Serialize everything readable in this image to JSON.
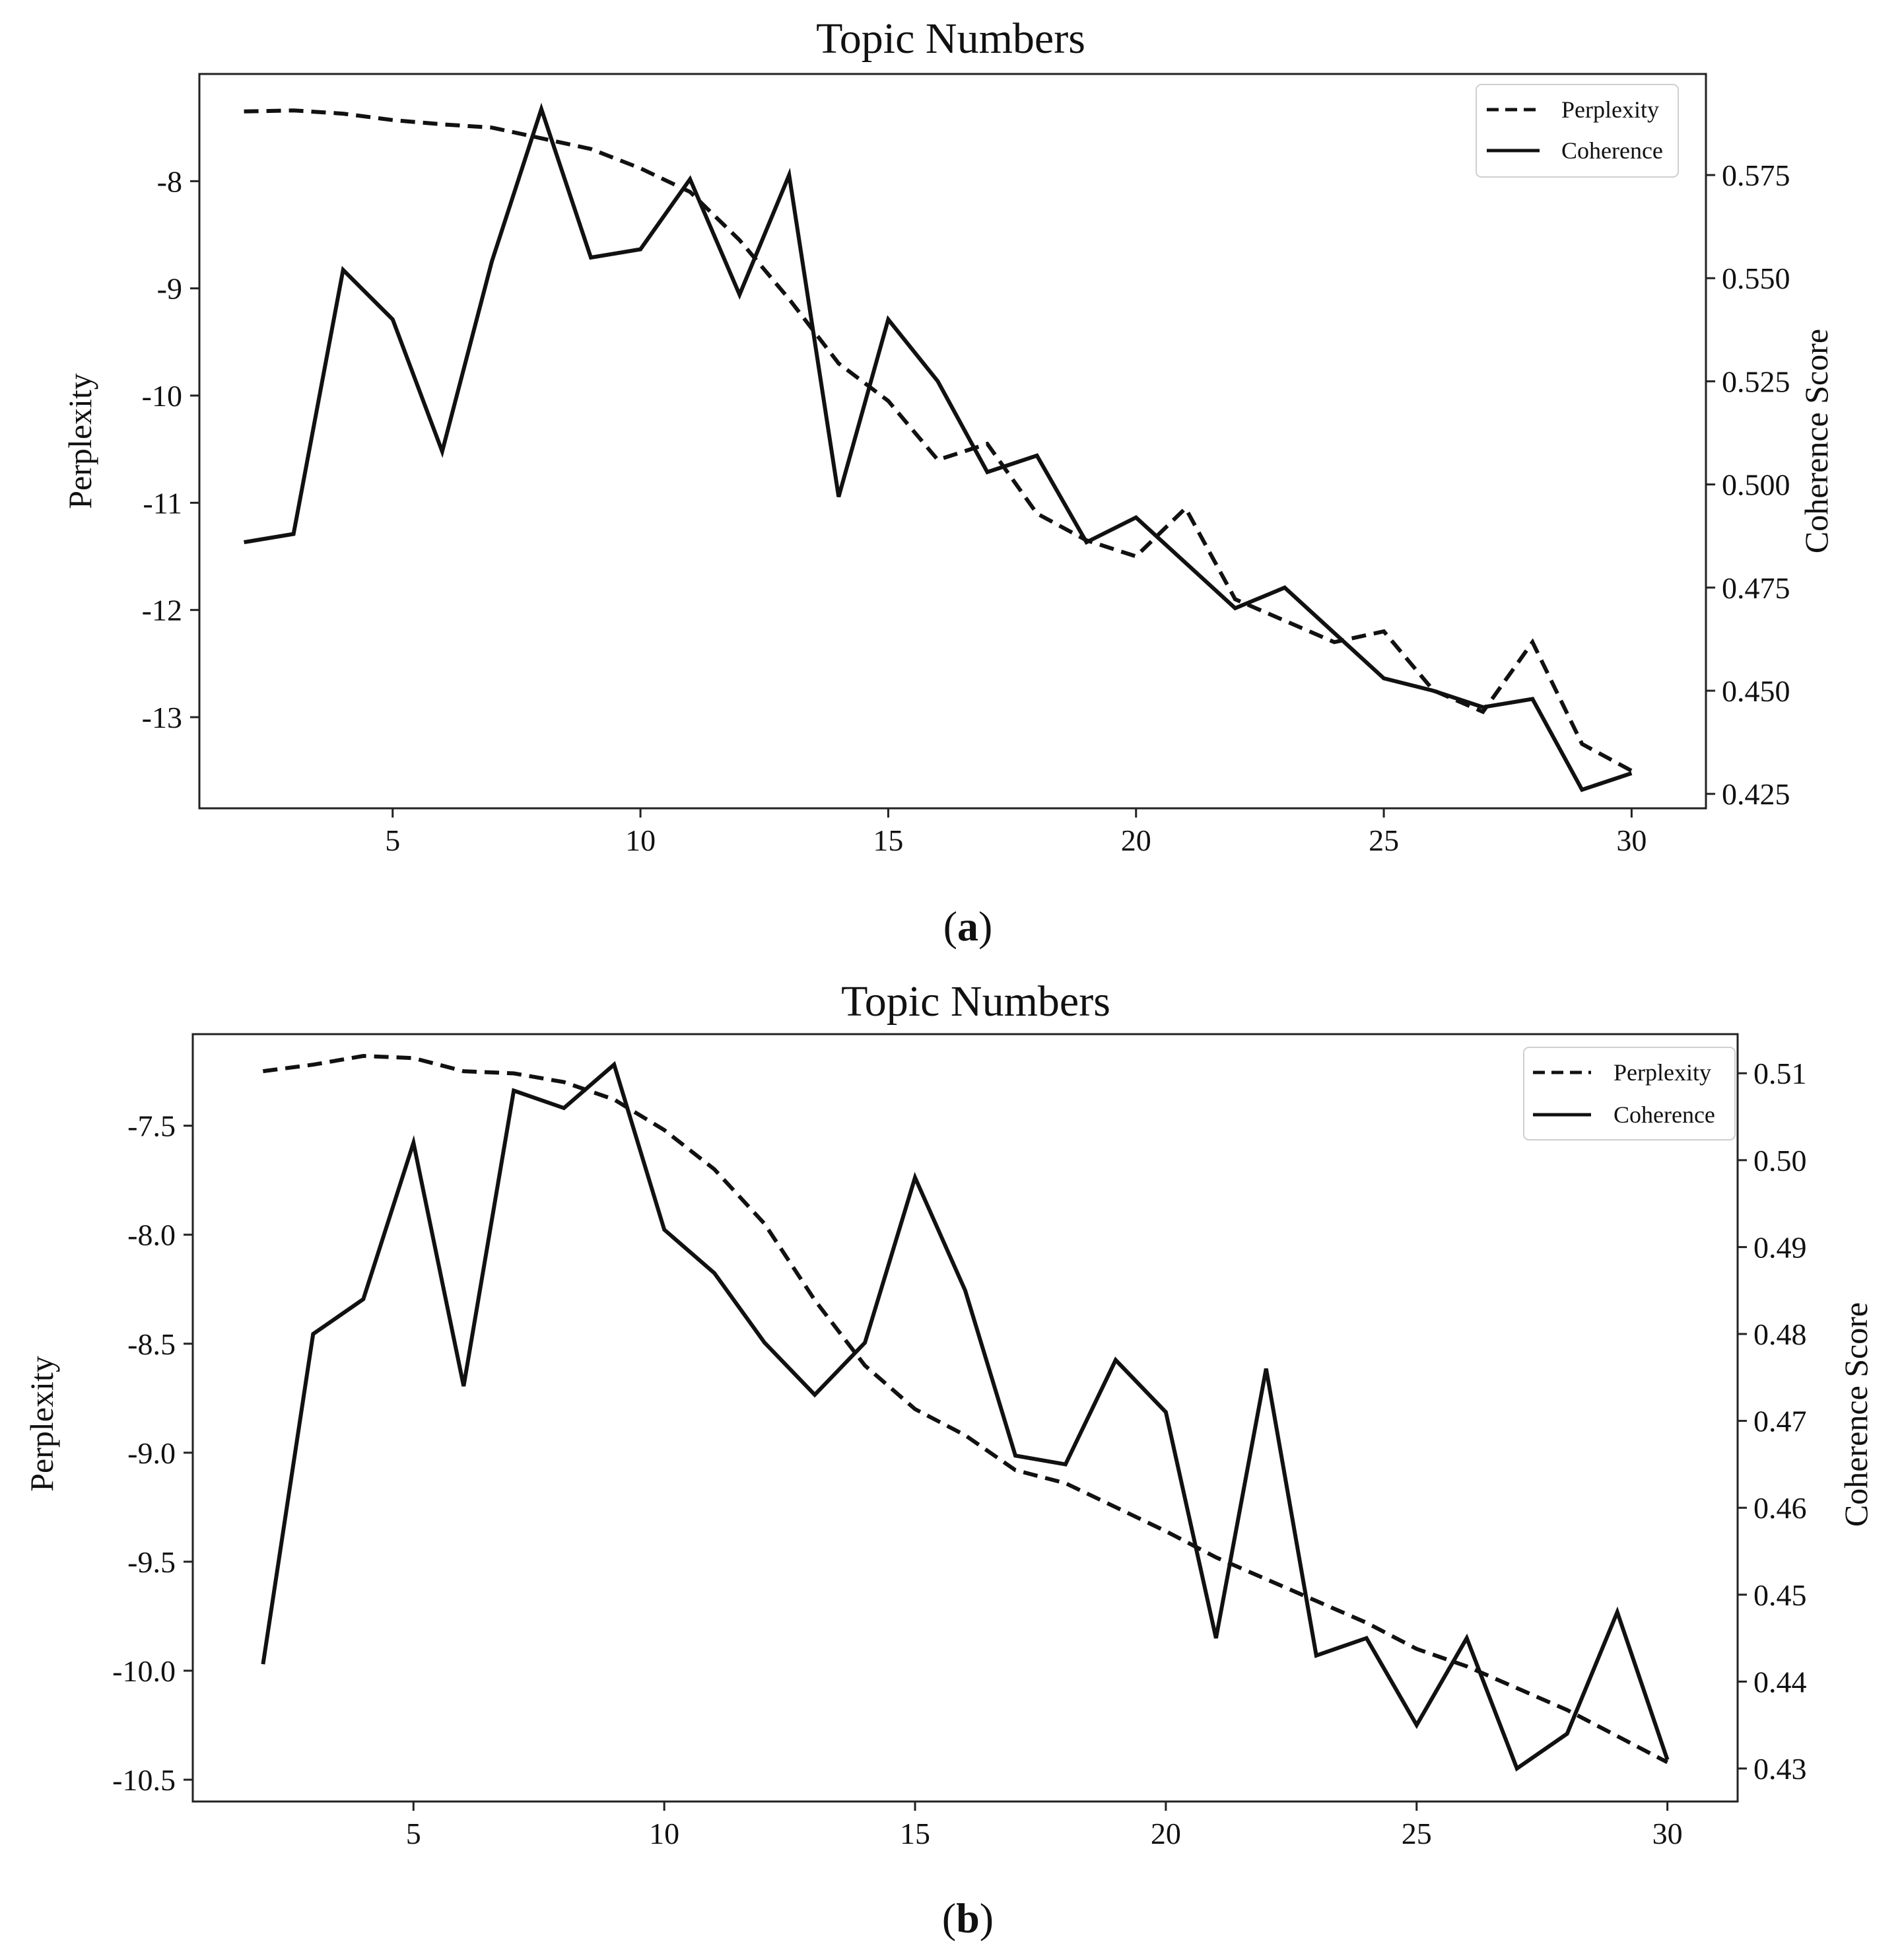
{
  "chart_data": [
    {
      "type": "line",
      "panel": "a",
      "caption_letter": "a",
      "title": "Topic Numbers",
      "xlabel": "",
      "ylabel": "Perplexity",
      "y2label": "Coherence Score",
      "x": [
        2,
        3,
        4,
        5,
        6,
        7,
        8,
        9,
        10,
        11,
        12,
        13,
        14,
        15,
        16,
        17,
        18,
        19,
        20,
        21,
        22,
        23,
        24,
        25,
        26,
        27,
        28,
        29,
        30
      ],
      "xticks": [
        5,
        10,
        15,
        20,
        25,
        30
      ],
      "xlim": [
        1.1,
        31.5
      ],
      "ylim": [
        -13.85,
        -7.0
      ],
      "yticks": [
        -8,
        -9,
        -10,
        -11,
        -12,
        -13
      ],
      "y2lim": [
        0.4215,
        0.5995
      ],
      "y2ticks": [
        "0.575",
        "0.550",
        "0.525",
        "0.500",
        "0.475",
        "0.450",
        "0.425"
      ],
      "legend_position": "upper right",
      "series": [
        {
          "name": "Perplexity",
          "axis": "left",
          "style": "dashed",
          "values": [
            -7.35,
            -7.34,
            -7.37,
            -7.43,
            -7.47,
            -7.5,
            -7.6,
            -7.7,
            -7.88,
            -8.1,
            -8.55,
            -9.1,
            -9.7,
            -10.05,
            -10.6,
            -10.45,
            -11.1,
            -11.35,
            -11.5,
            -11.05,
            -11.9,
            -12.1,
            -12.3,
            -12.2,
            -12.75,
            -12.95,
            -12.3,
            -13.25,
            -13.5
          ]
        },
        {
          "name": "Coherence",
          "axis": "right",
          "style": "solid",
          "values": [
            0.486,
            0.488,
            0.552,
            0.54,
            0.508,
            0.554,
            0.591,
            0.555,
            0.557,
            0.574,
            0.546,
            0.575,
            0.497,
            0.54,
            0.525,
            0.503,
            0.507,
            0.486,
            0.492,
            0.481,
            0.47,
            0.475,
            0.464,
            0.453,
            0.45,
            0.446,
            0.448,
            0.426,
            0.43
          ]
        }
      ]
    },
    {
      "type": "line",
      "panel": "b",
      "caption_letter": "b",
      "title": "Topic Numbers",
      "xlabel": "",
      "ylabel": "Perplexity",
      "y2label": "Coherence Score",
      "x": [
        2,
        3,
        4,
        5,
        6,
        7,
        8,
        9,
        10,
        11,
        12,
        13,
        14,
        15,
        16,
        17,
        18,
        19,
        20,
        21,
        22,
        23,
        24,
        25,
        26,
        27,
        28,
        29,
        30
      ],
      "xticks": [
        5,
        10,
        15,
        20,
        25,
        30
      ],
      "xlim": [
        0.6,
        31.4
      ],
      "ylim": [
        -10.6,
        -7.08
      ],
      "yticks": [
        "-7.5",
        "-8.0",
        "-8.5",
        "-9.0",
        "-9.5",
        "-10.0",
        "-10.5"
      ],
      "y2lim": [
        0.4262,
        0.5145
      ],
      "y2ticks": [
        "0.51",
        "0.50",
        "0.49",
        "0.48",
        "0.47",
        "0.46",
        "0.45",
        "0.44",
        "0.43"
      ],
      "legend_position": "upper right",
      "series": [
        {
          "name": "Perplexity",
          "axis": "left",
          "style": "dashed",
          "values": [
            -7.25,
            -7.22,
            -7.18,
            -7.19,
            -7.25,
            -7.26,
            -7.3,
            -7.38,
            -7.52,
            -7.7,
            -7.95,
            -8.3,
            -8.6,
            -8.8,
            -8.92,
            -9.08,
            -9.14,
            -9.25,
            -9.36,
            -9.48,
            -9.58,
            -9.68,
            -9.78,
            -9.9,
            -9.98,
            -10.08,
            -10.18,
            -10.3,
            -10.42
          ]
        },
        {
          "name": "Coherence",
          "axis": "right",
          "style": "solid",
          "values": [
            0.442,
            0.48,
            0.484,
            0.502,
            0.474,
            0.508,
            0.506,
            0.511,
            0.492,
            0.487,
            0.479,
            0.473,
            0.479,
            0.498,
            0.485,
            0.466,
            0.465,
            0.477,
            0.471,
            0.445,
            0.476,
            0.443,
            0.445,
            0.435,
            0.445,
            0.43,
            0.434,
            0.448,
            0.431
          ]
        }
      ]
    }
  ]
}
